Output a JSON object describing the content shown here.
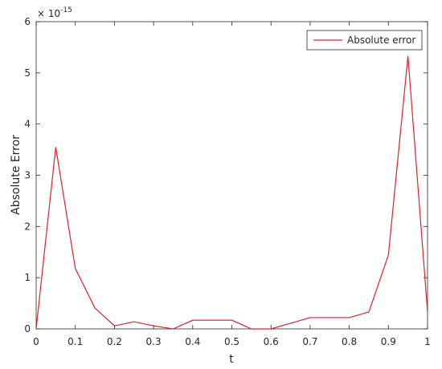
{
  "chart_data": {
    "type": "line",
    "xlabel": "t",
    "ylabel": "Absolute Error",
    "y_exponent": {
      "base": "× 10",
      "power": "-15"
    },
    "x": [
      0,
      0.05,
      0.1,
      0.15,
      0.2,
      0.25,
      0.3,
      0.35,
      0.4,
      0.45,
      0.5,
      0.55,
      0.6,
      0.65,
      0.7,
      0.75,
      0.8,
      0.85,
      0.9,
      0.95,
      1
    ],
    "series": [
      {
        "name": "Absolute error",
        "color": "#e0202a",
        "values": [
          0,
          3.55,
          1.18,
          0.41,
          0.06,
          0.14,
          0.06,
          0,
          0.17,
          0.17,
          0.17,
          0,
          0,
          0.11,
          0.22,
          0.22,
          0.22,
          0.33,
          1.44,
          5.33,
          0.33
        ]
      }
    ],
    "xlim": [
      0,
      1
    ],
    "xticks": [
      0,
      0.1,
      0.2,
      0.3,
      0.4,
      0.5,
      0.6,
      0.7,
      0.8,
      0.9,
      1
    ],
    "ylim": [
      0,
      6
    ],
    "yticks": [
      0,
      1,
      2,
      3,
      4,
      5,
      6
    ],
    "grid": false,
    "legend": "upper right"
  }
}
